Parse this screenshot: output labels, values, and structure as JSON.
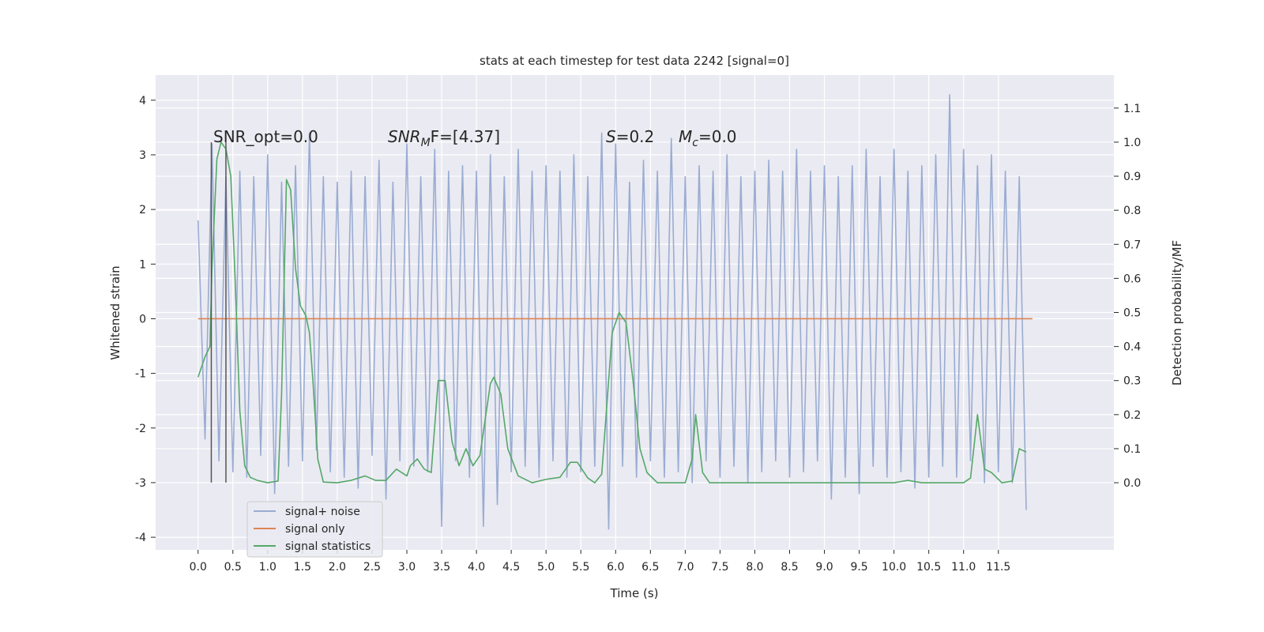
{
  "chart_data": {
    "type": "line",
    "title": "stats at each timestep for test data 2242 [signal=0]",
    "xlabel": "Time (s)",
    "ylabel": "Whitened strain",
    "y2label": "Detection probability/MF",
    "xlim": [
      -0.61,
      13.16
    ],
    "ylim": [
      -4.23,
      4.46
    ],
    "y2lim": [
      -0.197,
      1.197
    ],
    "xticks": [
      {
        "value": 0,
        "label": "0.0"
      },
      0.5,
      {
        "value": 1,
        "label": "1.0"
      },
      1.5,
      {
        "value": 2,
        "label": "2.0"
      },
      2.5,
      {
        "value": 3,
        "label": "3.0"
      },
      3.5,
      {
        "value": 4,
        "label": "4.0"
      },
      4.5,
      {
        "value": 5,
        "label": "5.0"
      },
      5.5,
      {
        "value": 6,
        "label": "6.0"
      },
      6.5,
      {
        "value": 7,
        "label": "7.0"
      },
      7.5,
      {
        "value": 8,
        "label": "8.0"
      },
      8.5,
      {
        "value": 9,
        "label": "9.0"
      },
      9.5,
      {
        "value": 10,
        "label": "10.0"
      },
      10.5,
      {
        "value": 11,
        "label": "11.0"
      },
      11.5
    ],
    "yticks": [
      -4,
      -3,
      -2,
      -1,
      0,
      1,
      2,
      3,
      4
    ],
    "y2ticks": [
      {
        "value": 0,
        "label": "0.0"
      },
      0.1,
      0.2,
      0.3,
      0.4,
      0.5,
      0.6,
      0.7,
      0.8,
      0.9,
      {
        "value": 1,
        "label": "1.0"
      },
      1.1
    ],
    "grid": true,
    "legend": "lower left",
    "annotations": [
      {
        "text": "SNR_opt=0.0"
      },
      {
        "text": "SNR",
        "sub": "M",
        "rest": "F=[4.37]"
      },
      {
        "text": "S",
        "rest": "=0.2"
      },
      {
        "text": "M",
        "sub": "c",
        "rest": "=0.0"
      }
    ],
    "vlines": {
      "x": [
        0.19,
        0.4
      ],
      "ymin": -3,
      "ymax": 3.23,
      "color": "#555555"
    },
    "series": [
      {
        "name": "signal+ noise",
        "color": "#9aacd2",
        "x": [
          0.0,
          0.1,
          0.2,
          0.3,
          0.4,
          0.5,
          0.6,
          0.7,
          0.8,
          0.9,
          1.0,
          1.1,
          1.2,
          1.3,
          1.4,
          1.5,
          1.6,
          1.7,
          1.8,
          1.9,
          2.0,
          2.1,
          2.2,
          2.3,
          2.4,
          2.5,
          2.6,
          2.7,
          2.8,
          2.9,
          3.0,
          3.1,
          3.2,
          3.3,
          3.4,
          3.5,
          3.6,
          3.7,
          3.8,
          3.9,
          4.0,
          4.1,
          4.2,
          4.3,
          4.4,
          4.5,
          4.6,
          4.7,
          4.8,
          4.9,
          5.0,
          5.1,
          5.2,
          5.3,
          5.4,
          5.5,
          5.6,
          5.7,
          5.8,
          5.9,
          6.0,
          6.1,
          6.2,
          6.3,
          6.4,
          6.5,
          6.6,
          6.7,
          6.8,
          6.9,
          7.0,
          7.1,
          7.2,
          7.3,
          7.4,
          7.5,
          7.6,
          7.7,
          7.8,
          7.9,
          8.0,
          8.1,
          8.2,
          8.3,
          8.4,
          8.5,
          8.6,
          8.7,
          8.8,
          8.9,
          9.0,
          9.1,
          9.2,
          9.3,
          9.4,
          9.5,
          9.6,
          9.7,
          9.8,
          9.9,
          10.0,
          10.1,
          10.2,
          10.3,
          10.4,
          10.5,
          10.6,
          10.7,
          10.8,
          10.9,
          11.0,
          11.1,
          11.2,
          11.3,
          11.4,
          11.5,
          11.6,
          11.7,
          11.8,
          11.9
        ],
        "values": [
          1.8,
          -2.2,
          3.2,
          -2.6,
          2.6,
          -2.8,
          2.7,
          -2.9,
          2.6,
          -2.5,
          3.0,
          -3.2,
          2.5,
          -2.7,
          2.8,
          -2.6,
          3.4,
          -2.4,
          2.6,
          -2.8,
          2.5,
          -2.9,
          2.7,
          -3.1,
          2.6,
          -2.5,
          2.9,
          -3.3,
          2.5,
          -2.6,
          3.2,
          -2.7,
          2.6,
          -2.8,
          3.1,
          -3.8,
          2.7,
          -2.6,
          2.8,
          -2.9,
          2.7,
          -3.8,
          3.0,
          -3.4,
          2.6,
          -2.8,
          3.1,
          -2.7,
          2.7,
          -2.9,
          2.8,
          -2.6,
          2.7,
          -2.9,
          3.0,
          -2.8,
          2.6,
          -2.7,
          3.4,
          -3.85,
          3.2,
          -2.7,
          2.5,
          -2.9,
          2.9,
          -2.6,
          2.7,
          -2.9,
          3.3,
          -2.8,
          2.6,
          -3.0,
          2.8,
          -2.6,
          2.7,
          -2.9,
          3.0,
          -2.7,
          2.6,
          -3.0,
          2.7,
          -2.8,
          2.9,
          -2.6,
          2.7,
          -2.9,
          3.1,
          -2.8,
          2.7,
          -2.6,
          2.8,
          -3.3,
          2.6,
          -2.9,
          2.8,
          -3.2,
          3.1,
          -2.7,
          2.6,
          -2.9,
          3.1,
          -2.8,
          2.7,
          -3.1,
          2.8,
          -2.9,
          3.0,
          -2.7,
          4.1,
          -2.9,
          3.1,
          -2.6,
          2.8,
          -3.0,
          3.0,
          -2.8,
          2.7,
          -3.0,
          2.6,
          -3.5
        ]
      },
      {
        "name": "signal only",
        "color": "#dd8452",
        "x": [
          0.0,
          11.99
        ],
        "values": [
          0,
          0
        ]
      },
      {
        "name": "signal statistics",
        "color": "#55a868",
        "axis": "y2",
        "x": [
          0.0,
          0.1,
          0.17,
          0.2,
          0.27,
          0.33,
          0.4,
          0.47,
          0.53,
          0.6,
          0.67,
          0.75,
          0.85,
          1.0,
          1.15,
          1.2,
          1.27,
          1.33,
          1.4,
          1.47,
          1.55,
          1.6,
          1.65,
          1.72,
          1.8,
          2.0,
          2.2,
          2.4,
          2.55,
          2.7,
          2.85,
          3.0,
          3.05,
          3.15,
          3.25,
          3.35,
          3.45,
          3.55,
          3.65,
          3.75,
          3.85,
          3.95,
          4.05,
          4.2,
          4.25,
          4.35,
          4.45,
          4.6,
          4.8,
          5.0,
          5.2,
          5.35,
          5.45,
          5.6,
          5.7,
          5.8,
          5.95,
          6.05,
          6.15,
          6.25,
          6.35,
          6.45,
          6.6,
          7.0,
          7.1,
          7.15,
          7.25,
          7.35,
          8.0,
          9.0,
          10.0,
          10.2,
          10.4,
          11.0,
          11.1,
          11.2,
          11.3,
          11.4,
          11.55,
          11.7,
          11.8,
          11.9
        ],
        "values": [
          0.31,
          0.37,
          0.4,
          0.63,
          0.95,
          1.0,
          0.98,
          0.9,
          0.61,
          0.21,
          0.05,
          0.016,
          0.007,
          0,
          0.005,
          0.26,
          0.89,
          0.86,
          0.63,
          0.52,
          0.49,
          0.44,
          0.3,
          0.07,
          0.002,
          0,
          0.007,
          0.02,
          0.007,
          0.007,
          0.04,
          0.02,
          0.05,
          0.07,
          0.04,
          0.03,
          0.3,
          0.3,
          0.12,
          0.05,
          0.1,
          0.05,
          0.08,
          0.29,
          0.31,
          0.26,
          0.1,
          0.02,
          0,
          0.01,
          0.016,
          0.06,
          0.06,
          0.014,
          0,
          0.025,
          0.44,
          0.5,
          0.47,
          0.3,
          0.1,
          0.03,
          0,
          0,
          0.07,
          0.2,
          0.03,
          0,
          0,
          0,
          0,
          0.007,
          0,
          0,
          0.014,
          0.2,
          0.04,
          0.03,
          0,
          0.005,
          0.1,
          0.09
        ]
      }
    ]
  }
}
